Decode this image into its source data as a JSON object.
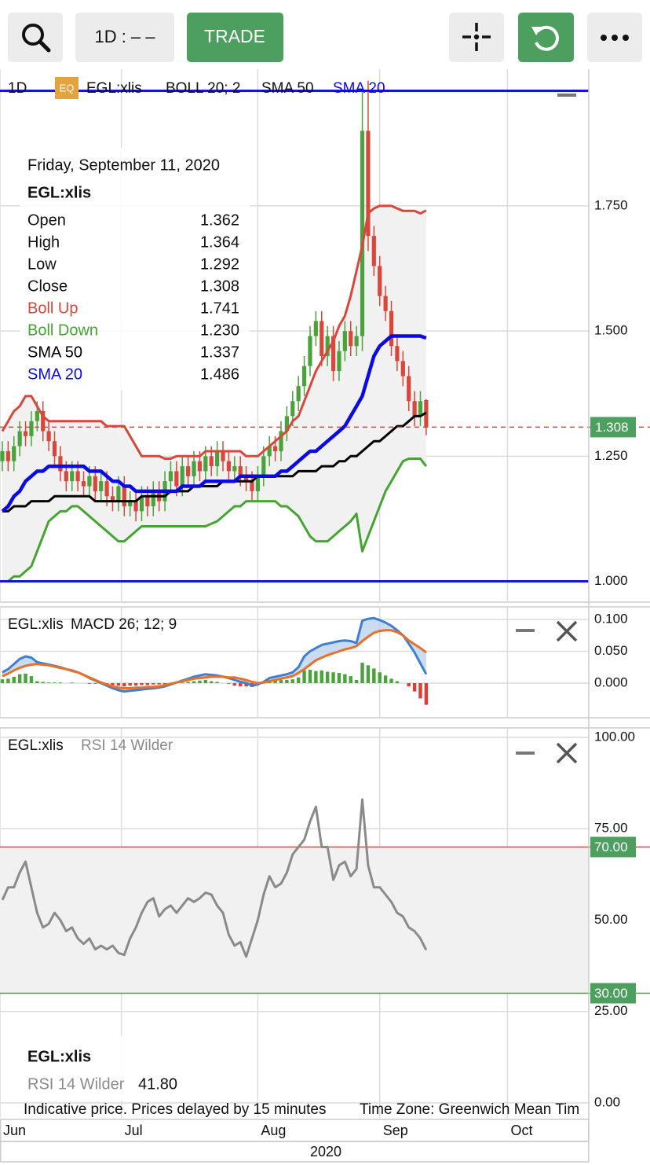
{
  "toolbar": {
    "interval": "1D : – –",
    "trade": "TRADE"
  },
  "chart_data": [
    {
      "type": "candlestick",
      "interval": "1D",
      "badge": "EQ",
      "symbol": "EGL:xlis",
      "bands_label": "BOLL 20; 2",
      "xlabel": "2020",
      "xlim": [
        -0.4,
        101
      ],
      "ylim": [
        0.96,
        2.02
      ],
      "xticks": [
        {
          "value": -0.4,
          "label": "Jun"
        },
        {
          "value": 20.5,
          "label": "Jul"
        },
        {
          "value": 44,
          "label": "Aug"
        },
        {
          "value": 65,
          "label": "Sep"
        },
        {
          "value": 87,
          "label": "Oct"
        }
      ],
      "yticks": [
        {
          "value": 1,
          "label": "1.000"
        },
        {
          "value": 1.25,
          "label": "1.250"
        },
        {
          "value": 1.5,
          "label": "1.500"
        },
        {
          "value": 1.75,
          "label": "1.750"
        }
      ],
      "grid": true,
      "up_color": "#4aa33a",
      "down_color": "#d9463b",
      "band_color": "#f1f1f1",
      "open": [
        1.24,
        1.26,
        1.24,
        1.27,
        1.3,
        1.29,
        1.32,
        1.34,
        1.3,
        1.28,
        1.25,
        1.22,
        1.2,
        1.22,
        1.2,
        1.19,
        1.21,
        1.18,
        1.2,
        1.17,
        1.16,
        1.19,
        1.15,
        1.16,
        1.14,
        1.17,
        1.15,
        1.18,
        1.16,
        1.2,
        1.22,
        1.19,
        1.23,
        1.21,
        1.24,
        1.22,
        1.25,
        1.23,
        1.26,
        1.24,
        1.22,
        1.23,
        1.21,
        1.2,
        1.18,
        1.21,
        1.25,
        1.27,
        1.26,
        1.3,
        1.33,
        1.36,
        1.39,
        1.43,
        1.49,
        1.52,
        1.45,
        1.49,
        1.42,
        1.46,
        1.5,
        1.47,
        1.49,
        1.9,
        1.69,
        1.63,
        1.57,
        1.54,
        1.47,
        1.44,
        1.41,
        1.36,
        1.33,
        1.362
      ],
      "high": [
        1.28,
        1.28,
        1.29,
        1.32,
        1.32,
        1.34,
        1.36,
        1.36,
        1.32,
        1.3,
        1.27,
        1.24,
        1.24,
        1.24,
        1.22,
        1.23,
        1.23,
        1.22,
        1.22,
        1.19,
        1.21,
        1.21,
        1.18,
        1.18,
        1.19,
        1.19,
        1.2,
        1.2,
        1.22,
        1.24,
        1.24,
        1.25,
        1.25,
        1.26,
        1.26,
        1.27,
        1.27,
        1.28,
        1.28,
        1.26,
        1.25,
        1.25,
        1.23,
        1.22,
        1.23,
        1.27,
        1.29,
        1.29,
        1.32,
        1.35,
        1.38,
        1.41,
        1.45,
        1.51,
        1.54,
        1.54,
        1.51,
        1.51,
        1.48,
        1.52,
        1.52,
        1.51,
        1.98,
        2.0,
        1.71,
        1.65,
        1.59,
        1.56,
        1.49,
        1.46,
        1.43,
        1.38,
        1.38,
        1.364
      ],
      "low": [
        1.22,
        1.22,
        1.22,
        1.25,
        1.27,
        1.27,
        1.3,
        1.28,
        1.26,
        1.23,
        1.2,
        1.18,
        1.18,
        1.18,
        1.17,
        1.17,
        1.16,
        1.16,
        1.15,
        1.14,
        1.14,
        1.13,
        1.13,
        1.12,
        1.12,
        1.13,
        1.13,
        1.14,
        1.14,
        1.18,
        1.17,
        1.17,
        1.19,
        1.19,
        1.2,
        1.2,
        1.21,
        1.21,
        1.22,
        1.2,
        1.2,
        1.19,
        1.18,
        1.16,
        1.16,
        1.19,
        1.23,
        1.24,
        1.24,
        1.28,
        1.31,
        1.34,
        1.37,
        1.41,
        1.47,
        1.43,
        1.43,
        1.4,
        1.4,
        1.44,
        1.45,
        1.45,
        1.46,
        1.66,
        1.61,
        1.55,
        1.52,
        1.45,
        1.42,
        1.39,
        1.34,
        1.31,
        1.31,
        1.292
      ],
      "close": [
        1.26,
        1.24,
        1.27,
        1.3,
        1.29,
        1.32,
        1.34,
        1.3,
        1.28,
        1.25,
        1.22,
        1.2,
        1.22,
        1.2,
        1.19,
        1.21,
        1.18,
        1.2,
        1.17,
        1.16,
        1.19,
        1.15,
        1.16,
        1.14,
        1.17,
        1.15,
        1.18,
        1.16,
        1.2,
        1.22,
        1.19,
        1.23,
        1.21,
        1.24,
        1.22,
        1.25,
        1.23,
        1.26,
        1.24,
        1.22,
        1.23,
        1.21,
        1.2,
        1.18,
        1.21,
        1.25,
        1.27,
        1.26,
        1.3,
        1.33,
        1.36,
        1.39,
        1.43,
        1.49,
        1.52,
        1.45,
        1.49,
        1.42,
        1.46,
        1.5,
        1.47,
        1.49,
        1.9,
        1.69,
        1.63,
        1.57,
        1.54,
        1.47,
        1.44,
        1.41,
        1.36,
        1.33,
        1.36,
        1.308
      ],
      "series": [
        {
          "name": "Boll Up",
          "color": "#d9463b",
          "width": 3,
          "values": [
            1.3,
            1.32,
            1.34,
            1.35,
            1.37,
            1.37,
            1.35,
            1.33,
            1.32,
            1.32,
            1.32,
            1.32,
            1.32,
            1.32,
            1.32,
            1.32,
            1.32,
            1.32,
            1.31,
            1.31,
            1.31,
            1.31,
            1.29,
            1.27,
            1.25,
            1.25,
            1.25,
            1.25,
            1.245,
            1.245,
            1.25,
            1.25,
            1.25,
            1.25,
            1.25,
            1.26,
            1.26,
            1.26,
            1.26,
            1.26,
            1.26,
            1.26,
            1.25,
            1.25,
            1.25,
            1.26,
            1.27,
            1.28,
            1.29,
            1.3,
            1.32,
            1.33,
            1.36,
            1.39,
            1.42,
            1.44,
            1.46,
            1.48,
            1.51,
            1.53,
            1.57,
            1.62,
            1.67,
            1.735,
            1.745,
            1.75,
            1.75,
            1.75,
            1.745,
            1.74,
            1.74,
            1.74,
            1.735,
            1.741
          ]
        },
        {
          "name": "Boll Down",
          "color": "#45a532",
          "width": 3,
          "values": [
            1.0,
            1.0,
            1.01,
            1.01,
            1.02,
            1.03,
            1.06,
            1.09,
            1.12,
            1.13,
            1.14,
            1.14,
            1.15,
            1.15,
            1.14,
            1.13,
            1.12,
            1.11,
            1.1,
            1.09,
            1.08,
            1.08,
            1.09,
            1.1,
            1.11,
            1.11,
            1.11,
            1.11,
            1.11,
            1.11,
            1.11,
            1.11,
            1.11,
            1.11,
            1.11,
            1.11,
            1.115,
            1.12,
            1.13,
            1.14,
            1.15,
            1.15,
            1.16,
            1.16,
            1.16,
            1.16,
            1.16,
            1.16,
            1.15,
            1.15,
            1.14,
            1.13,
            1.11,
            1.09,
            1.08,
            1.08,
            1.08,
            1.09,
            1.1,
            1.11,
            1.12,
            1.135,
            1.06,
            1.09,
            1.12,
            1.15,
            1.18,
            1.2,
            1.22,
            1.24,
            1.245,
            1.245,
            1.245,
            1.23
          ]
        },
        {
          "name": "SMA 50",
          "color": "#000000",
          "width": 3,
          "values": [
            1.14,
            1.14,
            1.15,
            1.15,
            1.15,
            1.16,
            1.16,
            1.16,
            1.16,
            1.17,
            1.17,
            1.17,
            1.17,
            1.17,
            1.17,
            1.17,
            1.16,
            1.16,
            1.16,
            1.16,
            1.16,
            1.16,
            1.16,
            1.16,
            1.17,
            1.17,
            1.17,
            1.17,
            1.17,
            1.18,
            1.18,
            1.18,
            1.18,
            1.19,
            1.19,
            1.19,
            1.19,
            1.19,
            1.2,
            1.2,
            1.2,
            1.2,
            1.2,
            1.2,
            1.21,
            1.21,
            1.21,
            1.21,
            1.21,
            1.21,
            1.21,
            1.22,
            1.22,
            1.22,
            1.22,
            1.23,
            1.23,
            1.23,
            1.24,
            1.24,
            1.25,
            1.25,
            1.26,
            1.27,
            1.28,
            1.28,
            1.29,
            1.3,
            1.31,
            1.31,
            1.32,
            1.33,
            1.33,
            1.337
          ]
        },
        {
          "name": "SMA 20",
          "color": "#0a0ae6",
          "width": 4.5,
          "values": [
            1.14,
            1.15,
            1.17,
            1.18,
            1.2,
            1.21,
            1.22,
            1.22,
            1.23,
            1.23,
            1.23,
            1.23,
            1.23,
            1.23,
            1.23,
            1.22,
            1.22,
            1.22,
            1.21,
            1.2,
            1.2,
            1.19,
            1.19,
            1.18,
            1.18,
            1.18,
            1.18,
            1.18,
            1.18,
            1.18,
            1.18,
            1.19,
            1.19,
            1.19,
            1.19,
            1.2,
            1.2,
            1.2,
            1.2,
            1.2,
            1.2,
            1.21,
            1.21,
            1.21,
            1.21,
            1.21,
            1.21,
            1.21,
            1.22,
            1.22,
            1.23,
            1.24,
            1.25,
            1.26,
            1.26,
            1.27,
            1.28,
            1.29,
            1.3,
            1.31,
            1.33,
            1.35,
            1.37,
            1.41,
            1.45,
            1.47,
            1.48,
            1.49,
            1.49,
            1.49,
            1.49,
            1.49,
            1.49,
            1.486
          ]
        }
      ],
      "hlines": {
        "values": [
          1.98,
          1.0
        ],
        "color": "#1414d8"
      },
      "last_price": 1.308,
      "last_price_color": "#d9463b",
      "label_box_color": "#4c9f5f"
    },
    {
      "type": "macd",
      "symbol": "EGL:xlis",
      "title": "MACD 26; 12; 9",
      "ylim": [
        -0.053,
        0.116
      ],
      "yticks": [
        {
          "value": 0,
          "label": "0.000"
        },
        {
          "value": 0.05,
          "label": "0.050"
        },
        {
          "value": 0.1,
          "label": "0.100"
        }
      ],
      "grid": true,
      "fill_color": "#bcd3ee",
      "series": [
        {
          "color": "#3f7fcf",
          "values": [
            0.017,
            0.022,
            0.03,
            0.038,
            0.042,
            0.04,
            0.033,
            0.031,
            0.029,
            0.027,
            0.025,
            0.022,
            0.02,
            0.017,
            0.013,
            0.008,
            0.004,
            0.0,
            -0.004,
            -0.008,
            -0.011,
            -0.013,
            -0.012,
            -0.011,
            -0.01,
            -0.009,
            -0.008,
            -0.007,
            -0.005,
            -0.002,
            0.001,
            0.004,
            0.007,
            0.01,
            0.012,
            0.014,
            0.013,
            0.012,
            0.01,
            0.008,
            0.005,
            0.002,
            0.0,
            -0.004,
            -0.002,
            0.002,
            0.008,
            0.01,
            0.012,
            0.014,
            0.017,
            0.025,
            0.042,
            0.05,
            0.055,
            0.06,
            0.062,
            0.064,
            0.066,
            0.067,
            0.066,
            0.063,
            0.098,
            0.101,
            0.102,
            0.099,
            0.095,
            0.09,
            0.083,
            0.075,
            0.062,
            0.048,
            0.031,
            0.014
          ]
        },
        {
          "color": "#e8702a",
          "values": [
            0.011,
            0.015,
            0.02,
            0.024,
            0.027,
            0.029,
            0.03,
            0.029,
            0.028,
            0.026,
            0.024,
            0.022,
            0.019,
            0.017,
            0.013,
            0.009,
            0.005,
            0.001,
            -0.002,
            -0.005,
            -0.007,
            -0.008,
            -0.008,
            -0.007,
            -0.007,
            -0.006,
            -0.006,
            -0.005,
            -0.003,
            -0.001,
            0.001,
            0.003,
            0.005,
            0.007,
            0.008,
            0.009,
            0.01,
            0.01,
            0.01,
            0.009,
            0.009,
            0.007,
            0.005,
            0.002,
            0.0,
            0.001,
            0.003,
            0.005,
            0.007,
            0.009,
            0.011,
            0.016,
            0.022,
            0.029,
            0.036,
            0.04,
            0.044,
            0.047,
            0.05,
            0.053,
            0.055,
            0.058,
            0.066,
            0.073,
            0.079,
            0.082,
            0.083,
            0.083,
            0.08,
            0.075,
            0.067,
            0.061,
            0.055,
            0.048
          ]
        }
      ],
      "histogram": {
        "up_color": "#4aa33a",
        "down_color": "#e53935",
        "values": [
          0.006,
          0.007,
          0.01,
          0.014,
          0.015,
          0.011,
          0.003,
          0.002,
          0.001,
          0.001,
          0.001,
          0,
          0.001,
          0,
          0,
          -0.001,
          -0.001,
          -0.001,
          -0.002,
          -0.003,
          -0.004,
          -0.005,
          -0.004,
          -0.004,
          -0.003,
          -0.003,
          -0.002,
          -0.002,
          -0.002,
          -0.001,
          0,
          0.001,
          0.002,
          0.003,
          0.004,
          0.005,
          0.003,
          0.002,
          0,
          -0.001,
          -0.004,
          -0.005,
          -0.005,
          -0.006,
          -0.002,
          0.001,
          0.005,
          0.005,
          0.005,
          0.005,
          0.006,
          0.009,
          0.02,
          0.021,
          0.019,
          0.02,
          0.018,
          0.017,
          0.016,
          0.014,
          0.011,
          0.005,
          0.032,
          0.028,
          0.023,
          0.017,
          0.012,
          0.007,
          0.003,
          0,
          -0.005,
          -0.013,
          -0.024,
          -0.034
        ]
      }
    },
    {
      "type": "line",
      "symbol": "EGL:xlis",
      "title": "RSI 14 Wilder",
      "color": "#8a8a8a",
      "last_value_label": "41.80",
      "ylim": [
        0,
        100
      ],
      "yticks": [
        {
          "value": 0,
          "label": "0.00"
        },
        {
          "value": 25,
          "label": "25.00"
        },
        {
          "value": 50,
          "label": "50.00"
        },
        {
          "value": 75,
          "label": "75.00"
        },
        {
          "value": 100,
          "label": "100.00"
        }
      ],
      "grid": true,
      "band_color": "#f1f1f1",
      "levels": [
        {
          "value": 70,
          "label": "70.00",
          "color": "#e0473c"
        },
        {
          "value": 30,
          "label": "30.00",
          "color": "#4aa33a"
        }
      ],
      "values": [
        55.5,
        59,
        59,
        63,
        66,
        59,
        52,
        48,
        49,
        52,
        50,
        47,
        48,
        45,
        43.5,
        45,
        42,
        43,
        42,
        43,
        41,
        40.5,
        45,
        48,
        52,
        55,
        56,
        51,
        53,
        54,
        52,
        54,
        56,
        55,
        56,
        57.5,
        57,
        54,
        52,
        46,
        43,
        44,
        40,
        45,
        50,
        57,
        62,
        59,
        60,
        63,
        68,
        70,
        72,
        77,
        81,
        70,
        70,
        61,
        65,
        66,
        62,
        64,
        83,
        65,
        59,
        59,
        57,
        55,
        52,
        51,
        48,
        47,
        45,
        41.8
      ]
    }
  ],
  "tooltip": {
    "date": "Friday, September 11, 2020",
    "fields": [
      "Open",
      "High",
      "Low",
      "Close"
    ],
    "values": [
      "1.362",
      "1.364",
      "1.292",
      "1.308",
      "1.741",
      "1.230",
      "1.337",
      "1.486"
    ]
  },
  "footer": {
    "note": "Indicative price. Prices delayed by 15 minutes",
    "timezone": "Time Zone: Greenwich Mean Tim"
  }
}
